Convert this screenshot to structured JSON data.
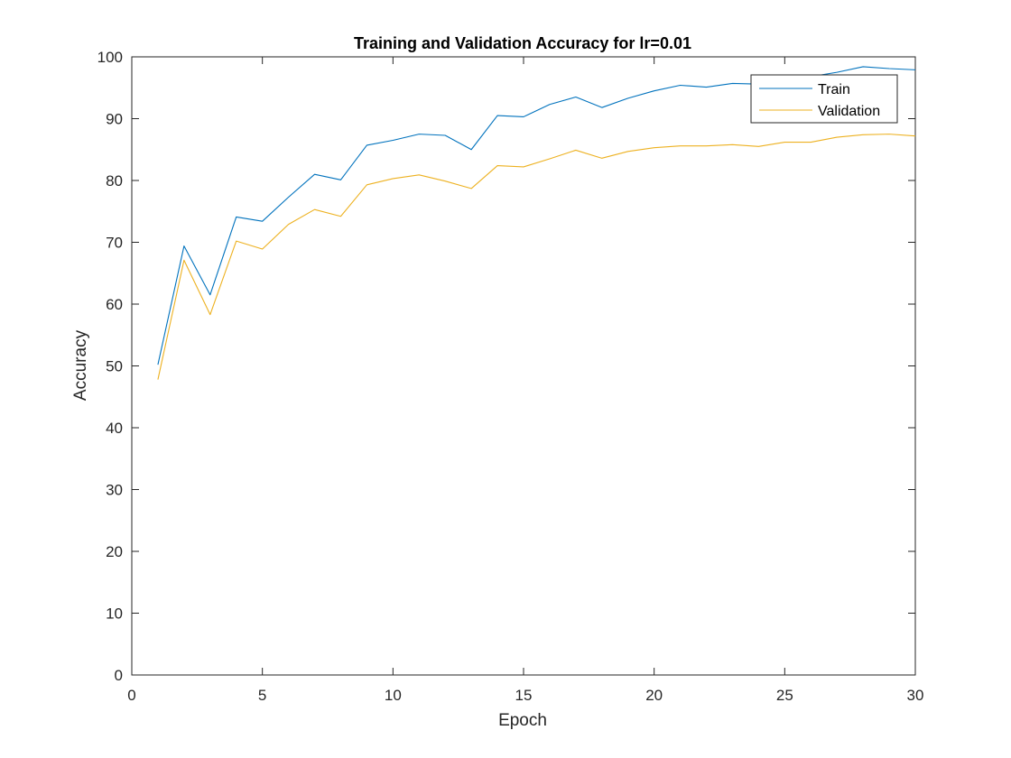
{
  "chart_data": {
    "type": "line",
    "title": "Training and Validation Accuracy for lr=0.01",
    "xlabel": "Epoch",
    "ylabel": "Accuracy",
    "xlim": [
      0,
      30
    ],
    "ylim": [
      0,
      100
    ],
    "xticks": [
      "0",
      "5",
      "10",
      "15",
      "20",
      "25",
      "30"
    ],
    "yticks": [
      "0",
      "10",
      "20",
      "30",
      "40",
      "50",
      "60",
      "70",
      "80",
      "90",
      "100"
    ],
    "grid": false,
    "legend_position": "top-right",
    "x": [
      1,
      2,
      3,
      4,
      5,
      6,
      7,
      8,
      9,
      10,
      11,
      12,
      13,
      14,
      15,
      16,
      17,
      18,
      19,
      20,
      21,
      22,
      23,
      24,
      25,
      26,
      27,
      28,
      29,
      30
    ],
    "series": [
      {
        "name": "Train",
        "color": "#0072BD",
        "values": [
          50.2,
          69.4,
          61.5,
          74.1,
          73.4,
          77.3,
          81.0,
          80.1,
          85.7,
          86.5,
          87.5,
          87.3,
          85.0,
          90.5,
          90.3,
          92.3,
          93.5,
          91.8,
          93.3,
          94.5,
          95.4,
          95.1,
          95.7,
          95.6,
          96.3,
          96.8,
          97.5,
          98.4,
          98.1,
          97.9
        ]
      },
      {
        "name": "Validation",
        "color": "#EDB120",
        "values": [
          47.8,
          67.1,
          58.3,
          70.2,
          68.9,
          72.9,
          75.3,
          74.2,
          79.3,
          80.3,
          80.9,
          79.9,
          78.7,
          82.4,
          82.2,
          83.5,
          84.9,
          83.6,
          84.7,
          85.3,
          85.6,
          85.6,
          85.8,
          85.5,
          86.2,
          86.2,
          87.0,
          87.4,
          87.5,
          87.2
        ]
      }
    ]
  }
}
